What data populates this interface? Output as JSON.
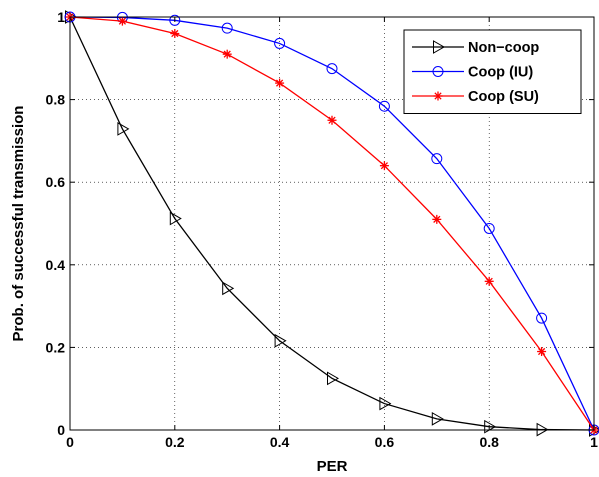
{
  "chart_data": {
    "type": "line",
    "xlabel": "PER",
    "ylabel": "Prob. of successful transmission",
    "xlim": [
      0,
      1
    ],
    "ylim": [
      0,
      1
    ],
    "xticks": [
      "0",
      "0.2",
      "0.4",
      "0.6",
      "0.8",
      "1"
    ],
    "yticks": [
      "0",
      "0.2",
      "0.4",
      "0.6",
      "0.8",
      "1"
    ],
    "grid": true,
    "legend_position": "top-right",
    "x": [
      0,
      0.1,
      0.2,
      0.3,
      0.4,
      0.5,
      0.6,
      0.7,
      0.8,
      0.9,
      1.0
    ],
    "series": [
      {
        "name": "Non−coop",
        "color": "#000000",
        "marker": "triangle-right",
        "values": [
          1.0,
          0.729,
          0.512,
          0.343,
          0.216,
          0.125,
          0.064,
          0.027,
          0.008,
          0.001,
          0.0
        ]
      },
      {
        "name": "Coop (IU)",
        "color": "#0000ff",
        "marker": "circle",
        "values": [
          1.0,
          0.999,
          0.992,
          0.973,
          0.936,
          0.875,
          0.784,
          0.657,
          0.488,
          0.271,
          0.0
        ]
      },
      {
        "name": "Coop (SU)",
        "color": "#ff0000",
        "marker": "asterisk",
        "values": [
          1.0,
          0.99,
          0.96,
          0.91,
          0.84,
          0.75,
          0.64,
          0.51,
          0.36,
          0.19,
          0.0
        ]
      }
    ]
  }
}
